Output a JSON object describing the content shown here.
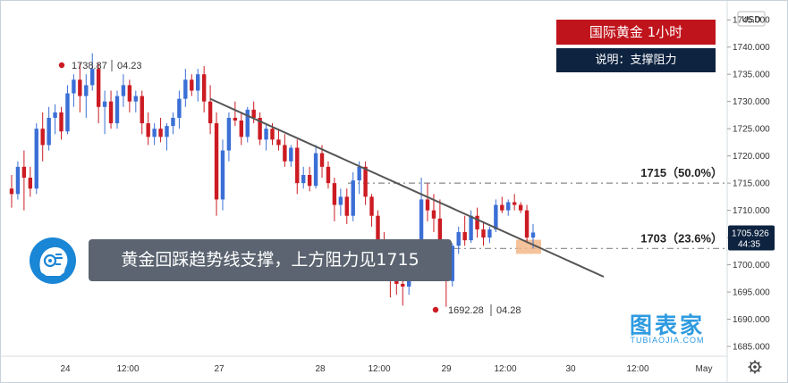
{
  "title": "国际黄金 1小时",
  "subtitle": "说明：支撑阻力",
  "banner_text": "黄金回踩趋势线支撑，上方阻力见1715",
  "watermark": {
    "main": "图表家",
    "sub": "TUBIAOJIA.COM"
  },
  "colors": {
    "up": "#3b6fd6",
    "down": "#cc1b22",
    "title_bg": "#c0141c",
    "subtitle_bg": "#0e2340",
    "trendline": "#555555",
    "fib_line": "#888888",
    "price_tag": "#0e2340",
    "support_zone": "#f3b98a"
  },
  "icons": {
    "avatar": "ai-head-icon",
    "settings": "gear-icon"
  },
  "chart_data": {
    "type": "candlestick",
    "currency_label": "USD",
    "y_range": [
      1683.2,
      1747.5
    ],
    "y_ticks": [
      "1745.000",
      "1740.000",
      "1735.000",
      "1730.000",
      "1725.000",
      "1720.000",
      "1715.000",
      "1710.000",
      "1705.000",
      "1700.000",
      "1695.000",
      "1690.000",
      "1685.000"
    ],
    "x_ticks": [
      "24",
      "12:00",
      "27",
      "28",
      "12:00",
      "29",
      "12:00",
      "30",
      "12:00",
      "May"
    ],
    "current_price": "1705.926",
    "countdown": "44:35",
    "fib_levels": [
      {
        "label": "1715（50.0%）",
        "price": 1715.0
      },
      {
        "label": "1703（23.6%）",
        "price": 1703.0
      }
    ],
    "annotations": [
      {
        "price": "1738.87",
        "date": "04.23",
        "kind": "high"
      },
      {
        "price": "1692.28",
        "date": "04.28",
        "kind": "low"
      }
    ],
    "trendline": {
      "start_price": 1730.5,
      "end_price": 1697.8
    },
    "candles": [
      [
        1714.0,
        1716.5,
        1710.5,
        1713.0
      ],
      [
        1713.0,
        1719.0,
        1712.0,
        1718.0
      ],
      [
        1718.0,
        1721.0,
        1710.0,
        1716.0
      ],
      [
        1716.0,
        1718.0,
        1712.5,
        1714.0
      ],
      [
        1714.0,
        1726.0,
        1713.0,
        1725.0
      ],
      [
        1725.0,
        1728.0,
        1719.0,
        1722.0
      ],
      [
        1722.0,
        1729.0,
        1721.0,
        1727.0
      ],
      [
        1727.0,
        1729.5,
        1724.0,
        1728.0
      ],
      [
        1728.0,
        1729.0,
        1723.0,
        1724.5
      ],
      [
        1724.5,
        1733.0,
        1724.0,
        1731.5
      ],
      [
        1731.5,
        1735.0,
        1729.0,
        1734.0
      ],
      [
        1734.0,
        1737.0,
        1728.0,
        1731.0
      ],
      [
        1731.0,
        1735.0,
        1727.0,
        1733.0
      ],
      [
        1733.0,
        1738.87,
        1732.0,
        1736.0
      ],
      [
        1736.0,
        1737.0,
        1726.0,
        1729.0
      ],
      [
        1729.0,
        1732.0,
        1724.0,
        1730.0
      ],
      [
        1730.0,
        1732.0,
        1725.0,
        1726.0
      ],
      [
        1726.0,
        1732.0,
        1725.0,
        1731.0
      ],
      [
        1731.0,
        1735.0,
        1729.0,
        1733.0
      ],
      [
        1733.0,
        1734.0,
        1728.0,
        1730.0
      ],
      [
        1730.0,
        1732.0,
        1728.0,
        1731.0
      ],
      [
        1731.0,
        1732.0,
        1724.0,
        1726.0
      ],
      [
        1726.0,
        1728.0,
        1722.0,
        1723.5
      ],
      [
        1723.5,
        1726.0,
        1722.0,
        1725.0
      ],
      [
        1725.0,
        1727.0,
        1722.5,
        1723.5
      ],
      [
        1723.5,
        1726.0,
        1721.0,
        1725.5
      ],
      [
        1725.5,
        1728.0,
        1724.0,
        1727.0
      ],
      [
        1727.0,
        1732.0,
        1725.0,
        1730.5
      ],
      [
        1730.5,
        1736.0,
        1729.0,
        1734.0
      ],
      [
        1734.0,
        1735.0,
        1731.0,
        1732.0
      ],
      [
        1732.0,
        1736.0,
        1730.0,
        1735.0
      ],
      [
        1735.0,
        1736.5,
        1728.0,
        1730.0
      ],
      [
        1730.0,
        1733.0,
        1724.0,
        1726.0
      ],
      [
        1726.0,
        1728.0,
        1709.0,
        1712.0
      ],
      [
        1712.0,
        1723.0,
        1710.0,
        1721.0
      ],
      [
        1721.0,
        1728.0,
        1719.0,
        1727.0
      ],
      [
        1727.0,
        1730.0,
        1725.5,
        1726.5
      ],
      [
        1726.5,
        1728.0,
        1722.0,
        1723.5
      ],
      [
        1723.5,
        1729.0,
        1722.5,
        1728.5
      ],
      [
        1728.5,
        1730.0,
        1726.0,
        1727.0
      ],
      [
        1727.0,
        1728.0,
        1722.0,
        1723.0
      ],
      [
        1723.0,
        1726.0,
        1721.0,
        1725.0
      ],
      [
        1725.0,
        1726.0,
        1722.0,
        1723.0
      ],
      [
        1723.0,
        1725.0,
        1721.0,
        1722.0
      ],
      [
        1722.0,
        1724.0,
        1718.0,
        1719.0
      ],
      [
        1719.0,
        1722.0,
        1718.0,
        1721.5
      ],
      [
        1721.5,
        1723.0,
        1713.0,
        1715.0
      ],
      [
        1715.0,
        1718.0,
        1714.0,
        1716.5
      ],
      [
        1716.5,
        1718.0,
        1713.5,
        1714.5
      ],
      [
        1714.5,
        1722.0,
        1714.0,
        1720.5
      ],
      [
        1720.5,
        1722.0,
        1716.0,
        1718.0
      ],
      [
        1718.0,
        1719.0,
        1714.0,
        1715.0
      ],
      [
        1715.0,
        1716.0,
        1708.0,
        1711.0
      ],
      [
        1711.0,
        1714.0,
        1709.0,
        1712.5
      ],
      [
        1712.5,
        1714.0,
        1707.5,
        1709.0
      ],
      [
        1709.0,
        1717.0,
        1708.0,
        1715.5
      ],
      [
        1715.5,
        1719.0,
        1713.0,
        1718.0
      ],
      [
        1718.0,
        1719.0,
        1711.0,
        1712.5
      ],
      [
        1712.5,
        1713.0,
        1707.0,
        1709.0
      ],
      [
        1709.0,
        1710.0,
        1702.0,
        1704.0
      ],
      [
        1704.0,
        1706.0,
        1697.0,
        1699.5
      ],
      [
        1699.5,
        1702.0,
        1694.0,
        1697.0
      ],
      [
        1697.0,
        1700.0,
        1694.5,
        1696.5
      ],
      [
        1696.5,
        1698.0,
        1692.5,
        1696.0
      ],
      [
        1696.0,
        1701.0,
        1694.5,
        1700.0
      ],
      [
        1700.0,
        1704.0,
        1698.0,
        1703.0
      ],
      [
        1703.0,
        1716.0,
        1701.0,
        1712.0
      ],
      [
        1712.0,
        1715.0,
        1708.0,
        1710.0
      ],
      [
        1710.0,
        1713.0,
        1706.0,
        1708.5
      ],
      [
        1708.5,
        1712.0,
        1702.0,
        1703.5
      ],
      [
        1703.5,
        1704.0,
        1692.28,
        1697.0
      ],
      [
        1697.0,
        1704.0,
        1696.0,
        1703.5
      ],
      [
        1703.5,
        1707.0,
        1702.0,
        1706.0
      ],
      [
        1706.0,
        1709.0,
        1703.5,
        1704.5
      ],
      [
        1704.5,
        1710.0,
        1704.0,
        1709.0
      ],
      [
        1709.0,
        1710.5,
        1705.0,
        1706.5
      ],
      [
        1706.5,
        1708.0,
        1703.5,
        1705.0
      ],
      [
        1705.0,
        1707.0,
        1704.0,
        1706.5
      ],
      [
        1706.5,
        1712.0,
        1706.0,
        1711.0
      ],
      [
        1711.0,
        1712.5,
        1709.5,
        1710.0
      ],
      [
        1710.0,
        1712.0,
        1709.0,
        1711.5
      ],
      [
        1711.5,
        1713.0,
        1710.0,
        1711.0
      ],
      [
        1711.0,
        1711.5,
        1709.5,
        1710.0
      ],
      [
        1710.0,
        1711.0,
        1704.0,
        1705.0
      ],
      [
        1705.0,
        1707.5,
        1703.0,
        1705.926
      ]
    ]
  }
}
